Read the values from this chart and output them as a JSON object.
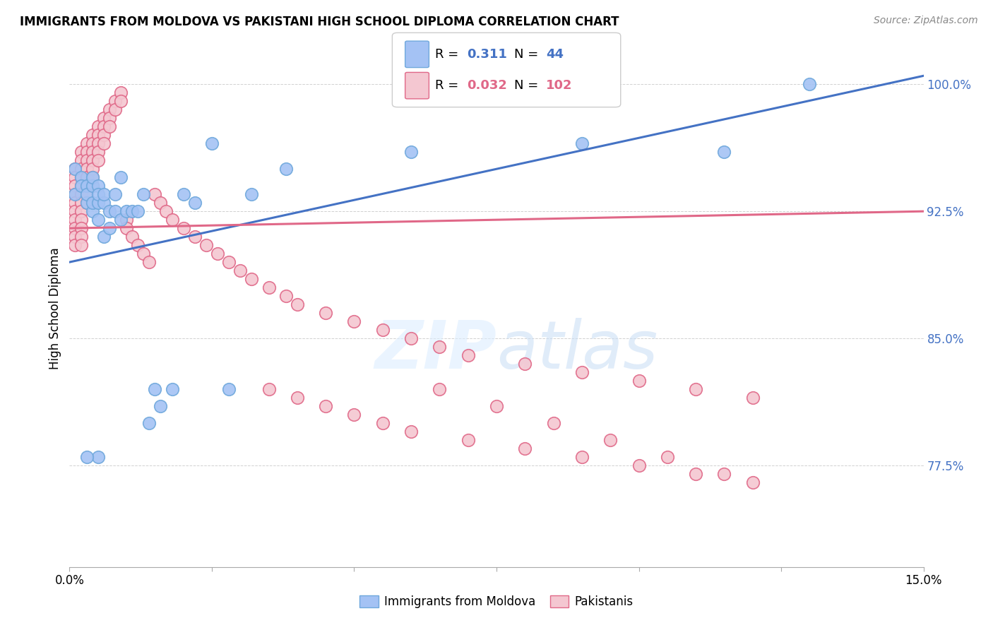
{
  "title": "IMMIGRANTS FROM MOLDOVA VS PAKISTANI HIGH SCHOOL DIPLOMA CORRELATION CHART",
  "source": "Source: ZipAtlas.com",
  "ylabel": "High School Diploma",
  "ylim": [
    0.715,
    1.02
  ],
  "xlim": [
    0.0,
    0.15
  ],
  "yticks": [
    0.775,
    0.85,
    0.925,
    1.0
  ],
  "ytick_labels": [
    "77.5%",
    "85.0%",
    "92.5%",
    "100.0%"
  ],
  "color_blue": "#a4c2f4",
  "color_blue_edge": "#6fa8dc",
  "color_pink": "#f4c7d1",
  "color_pink_edge": "#e06888",
  "color_blue_line": "#4472c4",
  "color_pink_line": "#e06888",
  "watermark": "ZIPatlas",
  "moldova_x": [
    0.001,
    0.001,
    0.002,
    0.002,
    0.003,
    0.003,
    0.003,
    0.004,
    0.004,
    0.004,
    0.004,
    0.005,
    0.005,
    0.005,
    0.005,
    0.006,
    0.006,
    0.006,
    0.007,
    0.007,
    0.008,
    0.008,
    0.009,
    0.009,
    0.01,
    0.011,
    0.012,
    0.013,
    0.014,
    0.015,
    0.016,
    0.018,
    0.02,
    0.022,
    0.025,
    0.028,
    0.032,
    0.038,
    0.06,
    0.09,
    0.115,
    0.13,
    0.005,
    0.003
  ],
  "moldova_y": [
    0.935,
    0.95,
    0.945,
    0.94,
    0.93,
    0.94,
    0.935,
    0.925,
    0.93,
    0.94,
    0.945,
    0.92,
    0.93,
    0.94,
    0.935,
    0.91,
    0.93,
    0.935,
    0.915,
    0.925,
    0.925,
    0.935,
    0.92,
    0.945,
    0.925,
    0.925,
    0.925,
    0.935,
    0.8,
    0.82,
    0.81,
    0.82,
    0.935,
    0.93,
    0.965,
    0.82,
    0.935,
    0.95,
    0.96,
    0.965,
    0.96,
    1.0,
    0.78,
    0.78
  ],
  "pakistan_x": [
    0.001,
    0.001,
    0.001,
    0.001,
    0.001,
    0.001,
    0.001,
    0.001,
    0.001,
    0.001,
    0.002,
    0.002,
    0.002,
    0.002,
    0.002,
    0.002,
    0.002,
    0.002,
    0.002,
    0.002,
    0.002,
    0.002,
    0.003,
    0.003,
    0.003,
    0.003,
    0.003,
    0.003,
    0.003,
    0.003,
    0.004,
    0.004,
    0.004,
    0.004,
    0.004,
    0.004,
    0.004,
    0.005,
    0.005,
    0.005,
    0.005,
    0.005,
    0.006,
    0.006,
    0.006,
    0.006,
    0.007,
    0.007,
    0.007,
    0.008,
    0.008,
    0.009,
    0.009,
    0.01,
    0.01,
    0.011,
    0.012,
    0.013,
    0.014,
    0.015,
    0.016,
    0.017,
    0.018,
    0.02,
    0.022,
    0.024,
    0.026,
    0.028,
    0.03,
    0.032,
    0.035,
    0.038,
    0.04,
    0.045,
    0.05,
    0.055,
    0.06,
    0.065,
    0.07,
    0.08,
    0.09,
    0.1,
    0.11,
    0.12,
    0.035,
    0.04,
    0.045,
    0.05,
    0.055,
    0.06,
    0.07,
    0.08,
    0.09,
    0.1,
    0.11,
    0.12,
    0.065,
    0.075,
    0.085,
    0.095,
    0.105,
    0.115
  ],
  "pakistan_y": [
    0.95,
    0.945,
    0.94,
    0.935,
    0.93,
    0.925,
    0.92,
    0.915,
    0.91,
    0.905,
    0.96,
    0.955,
    0.95,
    0.945,
    0.94,
    0.935,
    0.93,
    0.925,
    0.92,
    0.915,
    0.91,
    0.905,
    0.965,
    0.96,
    0.955,
    0.95,
    0.945,
    0.94,
    0.935,
    0.93,
    0.97,
    0.965,
    0.96,
    0.955,
    0.95,
    0.945,
    0.94,
    0.975,
    0.97,
    0.965,
    0.96,
    0.955,
    0.98,
    0.975,
    0.97,
    0.965,
    0.985,
    0.98,
    0.975,
    0.99,
    0.985,
    0.995,
    0.99,
    0.92,
    0.915,
    0.91,
    0.905,
    0.9,
    0.895,
    0.935,
    0.93,
    0.925,
    0.92,
    0.915,
    0.91,
    0.905,
    0.9,
    0.895,
    0.89,
    0.885,
    0.88,
    0.875,
    0.87,
    0.865,
    0.86,
    0.855,
    0.85,
    0.845,
    0.84,
    0.835,
    0.83,
    0.825,
    0.82,
    0.815,
    0.82,
    0.815,
    0.81,
    0.805,
    0.8,
    0.795,
    0.79,
    0.785,
    0.78,
    0.775,
    0.77,
    0.765,
    0.82,
    0.81,
    0.8,
    0.79,
    0.78,
    0.77
  ]
}
